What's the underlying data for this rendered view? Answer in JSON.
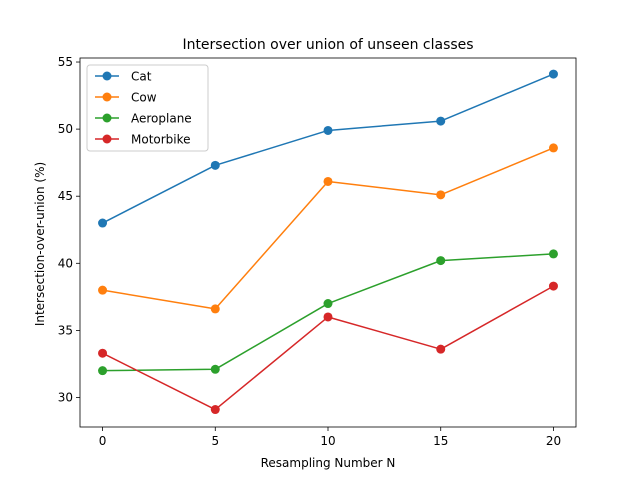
{
  "chart_data": {
    "type": "line",
    "title": "Intersection over union of unseen classes",
    "xlabel": "Resampling Number N",
    "ylabel": "Intersection-over-union (%)",
    "x": [
      0,
      5,
      10,
      15,
      20
    ],
    "xlim": [
      -1,
      21
    ],
    "ylim": [
      27.8,
      55.3
    ],
    "xticks": [
      0,
      5,
      10,
      15,
      20
    ],
    "yticks": [
      30,
      35,
      40,
      45,
      50,
      55
    ],
    "grid": false,
    "legend_position": "upper-left",
    "series": [
      {
        "name": "Cat",
        "color": "#1f77b4",
        "values": [
          43.0,
          47.3,
          49.9,
          50.6,
          54.1
        ]
      },
      {
        "name": "Cow",
        "color": "#ff7f0e",
        "values": [
          38.0,
          36.6,
          46.1,
          45.1,
          48.6
        ]
      },
      {
        "name": "Aeroplane",
        "color": "#2ca02c",
        "values": [
          32.0,
          32.1,
          37.0,
          40.2,
          40.7
        ]
      },
      {
        "name": "Motorbike",
        "color": "#d62728",
        "values": [
          33.3,
          29.1,
          36.0,
          33.6,
          38.3
        ]
      }
    ]
  }
}
